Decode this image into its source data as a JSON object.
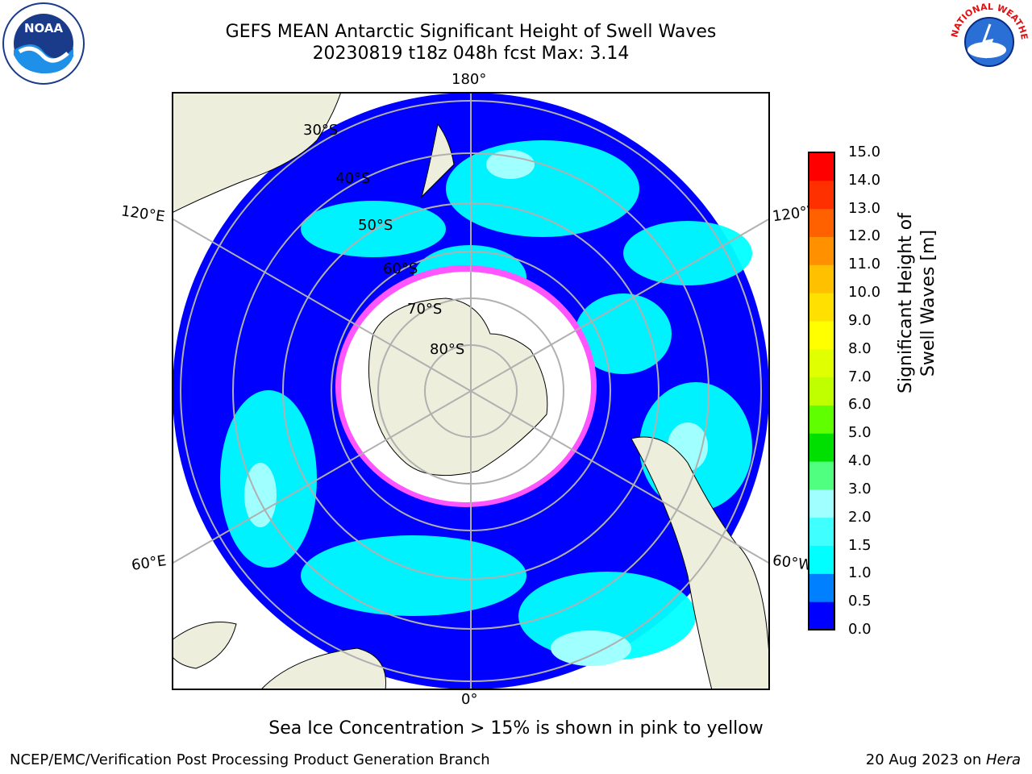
{
  "title": {
    "line1": "GEFS MEAN Antarctic Significant Height of Swell Waves",
    "line2": "20230819 t18z 048h fcst   Max: 3.14"
  },
  "map": {
    "projection": "south-polar-stereographic",
    "lat_labels": [
      "30°S",
      "40°S",
      "50°S",
      "60°S",
      "70°S",
      "80°S"
    ],
    "lon_labels": {
      "top": "180°",
      "bottom": "0°",
      "left_upper": "120°E",
      "left_lower": "60°E",
      "right_upper": "120°W",
      "right_lower": "60°W"
    },
    "colors": {
      "land": "#eeeedd",
      "ocean_low": "#0000ff",
      "ocean_mid": "#00ffff",
      "sea_ice": "#ff66ff",
      "grid": "#b0b0b0"
    }
  },
  "colorbar": {
    "label": "Significant Height of Swell Waves [m]",
    "ticks": [
      "0.0",
      "0.5",
      "1.0",
      "1.5",
      "2.0",
      "3.0",
      "4.0",
      "5.0",
      "6.0",
      "7.0",
      "8.0",
      "9.0",
      "10.0",
      "11.0",
      "12.0",
      "13.0",
      "14.0",
      "15.0"
    ],
    "colors": [
      "#0000ff",
      "#0080ff",
      "#00ffff",
      "#40ffff",
      "#a0ffff",
      "#50ff80",
      "#00e000",
      "#60ff00",
      "#c0ff00",
      "#e0ff00",
      "#ffff00",
      "#ffe000",
      "#ffc000",
      "#ff9000",
      "#ff6000",
      "#ff3000",
      "#ff0000"
    ]
  },
  "note": "Sea Ice Concentration > 15% is shown in pink to yellow",
  "footer": {
    "left": "NCEP/EMC/Verification Post Processing Product Generation Branch",
    "right_prefix": "20 Aug 2023 on ",
    "right_host": "Hera"
  },
  "logos": {
    "noaa": "NOAA",
    "nws": "NATIONAL WEATHER SERVICE"
  }
}
